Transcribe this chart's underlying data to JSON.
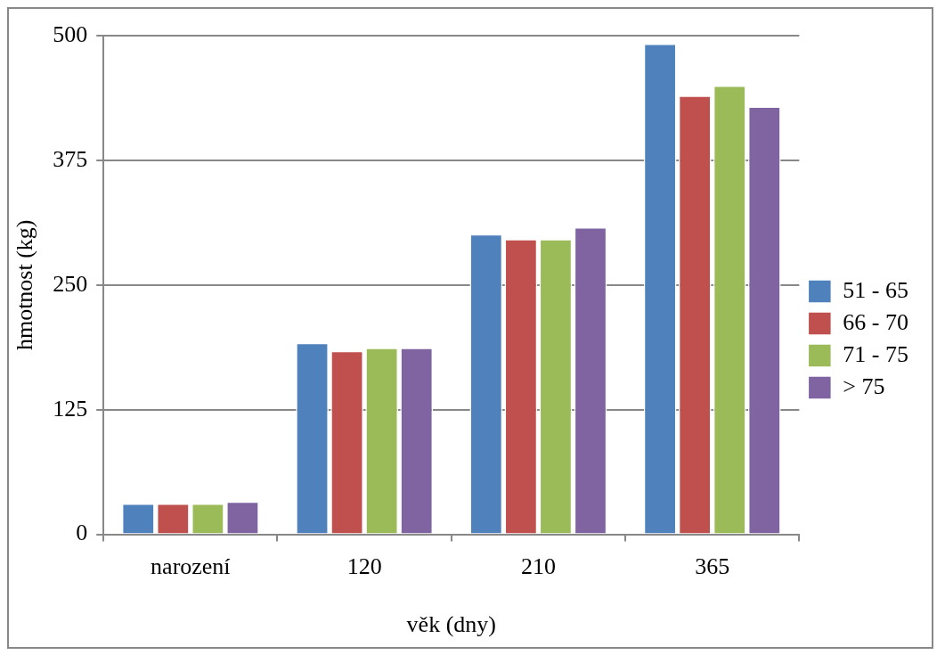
{
  "chart_data": {
    "type": "bar",
    "xlabel": "věk (dny)",
    "ylabel": "hmotnost (kg)",
    "categories": [
      "narození",
      "120",
      "210",
      "365"
    ],
    "series": [
      {
        "name": "51 - 65",
        "color": "#4f81bd",
        "values": [
          31,
          192,
          301,
          492
        ]
      },
      {
        "name": "66 - 70",
        "color": "#c0504d",
        "values": [
          31,
          184,
          296,
          440
        ]
      },
      {
        "name": "71 - 75",
        "color": "#9bbb59",
        "values": [
          31,
          187,
          296,
          450
        ]
      },
      {
        "name": "> 75",
        "color": "#8064a2",
        "values": [
          33,
          187,
          308,
          429
        ]
      }
    ],
    "ylim": [
      0,
      500
    ],
    "yticks": [
      0,
      125,
      250,
      375,
      500
    ],
    "grid": "y",
    "legend": "right"
  }
}
